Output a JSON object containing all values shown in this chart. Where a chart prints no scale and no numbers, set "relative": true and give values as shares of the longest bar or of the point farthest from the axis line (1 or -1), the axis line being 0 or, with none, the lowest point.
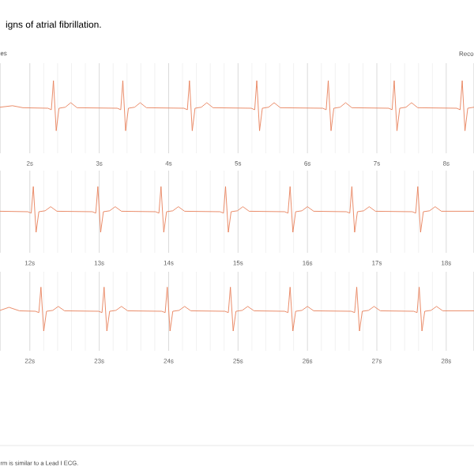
{
  "chart_data": [
    {
      "type": "line",
      "title": "igns of atrial fibrillation.",
      "relative": true,
      "grid": "x",
      "annotations": [
        "es",
        "Reco"
      ],
      "xlim": [
        1.57,
        8.4
      ],
      "xticks": [
        {
          "value": 2,
          "label": "2s"
        },
        {
          "value": 3,
          "label": "3s"
        },
        {
          "value": 4,
          "label": "4s"
        },
        {
          "value": 5,
          "label": "5s"
        },
        {
          "value": 6,
          "label": "6s"
        },
        {
          "value": 7,
          "label": "7s"
        },
        {
          "value": 8,
          "label": "8s"
        }
      ],
      "series": [
        {
          "color": "#e8805a",
          "x": [
            1.57,
            1.75,
            1.9,
            2.26,
            2.31,
            2.34,
            2.38,
            2.42,
            2.51,
            2.59,
            2.68,
            3.26,
            3.31,
            3.34,
            3.38,
            3.42,
            3.51,
            3.59,
            3.68,
            4.22,
            4.27,
            4.3,
            4.34,
            4.38,
            4.47,
            4.55,
            4.64,
            5.19,
            5.24,
            5.27,
            5.31,
            5.35,
            5.44,
            5.52,
            5.61,
            6.22,
            6.27,
            6.3,
            6.34,
            6.38,
            6.47,
            6.55,
            6.64,
            7.17,
            7.22,
            7.25,
            7.29,
            7.33,
            7.42,
            7.5,
            7.59,
            8.15,
            8.2,
            8.23,
            8.27,
            8.31,
            8.4
          ],
          "values": [
            0.47,
            0.5,
            0.46,
            0.45,
            0.42,
            1,
            0,
            0.45,
            0.47,
            0.56,
            0.46,
            0.45,
            0.42,
            1,
            0,
            0.45,
            0.47,
            0.56,
            0.46,
            0.45,
            0.42,
            1,
            0,
            0.45,
            0.47,
            0.56,
            0.46,
            0.45,
            0.42,
            1,
            0,
            0.45,
            0.47,
            0.56,
            0.46,
            0.45,
            0.42,
            1,
            0,
            0.45,
            0.47,
            0.56,
            0.46,
            0.45,
            0.42,
            1,
            0,
            0.45,
            0.47,
            0.56,
            0.46,
            0.45,
            0.42,
            1,
            0,
            0.45,
            0.47
          ]
        }
      ]
    },
    {
      "type": "line",
      "relative": true,
      "grid": "x",
      "xlim": [
        11.57,
        18.4
      ],
      "xticks": [
        {
          "value": 12,
          "label": "12s"
        },
        {
          "value": 13,
          "label": "13s"
        },
        {
          "value": 14,
          "label": "14s"
        },
        {
          "value": 15,
          "label": "15s"
        },
        {
          "value": 16,
          "label": "16s"
        },
        {
          "value": 17,
          "label": "17s"
        },
        {
          "value": 18,
          "label": "18s"
        }
      ],
      "series": [
        {
          "color": "#e8805a",
          "x": [
            11.57,
            11.97,
            12.02,
            12.05,
            12.09,
            12.13,
            12.22,
            12.3,
            12.39,
            12.9,
            12.95,
            12.98,
            13.02,
            13.06,
            13.15,
            13.23,
            13.32,
            13.81,
            13.86,
            13.89,
            13.93,
            13.97,
            14.06,
            14.14,
            14.23,
            14.74,
            14.79,
            14.82,
            14.86,
            14.9,
            14.99,
            15.07,
            15.16,
            15.67,
            15.72,
            15.75,
            15.79,
            15.83,
            15.92,
            16.0,
            16.09,
            16.56,
            16.61,
            16.64,
            16.68,
            16.72,
            16.81,
            16.89,
            16.98,
            17.51,
            17.56,
            17.59,
            17.63,
            17.67,
            17.76,
            17.84,
            17.93,
            18.4
          ],
          "values": [
            0.46,
            0.45,
            0.42,
            1,
            0,
            0.45,
            0.47,
            0.56,
            0.46,
            0.45,
            0.42,
            1,
            0,
            0.45,
            0.47,
            0.56,
            0.46,
            0.45,
            0.42,
            1,
            0,
            0.45,
            0.47,
            0.56,
            0.46,
            0.45,
            0.42,
            1,
            0,
            0.45,
            0.47,
            0.56,
            0.46,
            0.45,
            0.42,
            1,
            0,
            0.45,
            0.47,
            0.56,
            0.46,
            0.45,
            0.42,
            1,
            0,
            0.45,
            0.47,
            0.56,
            0.46,
            0.45,
            0.42,
            1,
            0,
            0.45,
            0.47,
            0.56,
            0.46,
            0.46
          ]
        }
      ]
    },
    {
      "type": "line",
      "relative": true,
      "grid": "x",
      "annotations": [
        "rm is similar to a Lead I ECG."
      ],
      "xlim": [
        21.57,
        28.4
      ],
      "xticks": [
        {
          "value": 22,
          "label": "22s"
        },
        {
          "value": 23,
          "label": "23s"
        },
        {
          "value": 24,
          "label": "24s"
        },
        {
          "value": 25,
          "label": "25s"
        },
        {
          "value": 26,
          "label": "26s"
        },
        {
          "value": 27,
          "label": "27s"
        },
        {
          "value": 28,
          "label": "28s"
        }
      ],
      "series": [
        {
          "color": "#e8805a",
          "x": [
            21.57,
            21.7,
            21.85,
            22.08,
            22.13,
            22.16,
            22.2,
            22.24,
            22.33,
            22.41,
            22.5,
            22.99,
            23.04,
            23.07,
            23.11,
            23.15,
            23.24,
            23.32,
            23.41,
            23.9,
            23.95,
            23.98,
            24.02,
            24.06,
            24.15,
            24.23,
            24.32,
            24.81,
            24.86,
            24.89,
            24.93,
            24.97,
            25.06,
            25.14,
            25.23,
            25.67,
            25.72,
            25.75,
            25.79,
            25.83,
            25.92,
            26.0,
            26.09,
            26.63,
            26.68,
            26.71,
            26.75,
            26.79,
            26.88,
            26.96,
            27.05,
            27.53,
            27.58,
            27.61,
            27.65,
            27.69,
            27.78,
            27.86,
            27.95,
            28.4
          ],
          "values": [
            0.47,
            0.54,
            0.46,
            0.45,
            0.42,
            1,
            0,
            0.45,
            0.47,
            0.56,
            0.46,
            0.45,
            0.42,
            1,
            0,
            0.45,
            0.47,
            0.56,
            0.46,
            0.45,
            0.42,
            1,
            0,
            0.45,
            0.47,
            0.56,
            0.46,
            0.45,
            0.42,
            1,
            0,
            0.45,
            0.47,
            0.56,
            0.46,
            0.45,
            0.42,
            1,
            0,
            0.45,
            0.47,
            0.56,
            0.46,
            0.45,
            0.42,
            1,
            0,
            0.45,
            0.47,
            0.56,
            0.46,
            0.45,
            0.42,
            1,
            0,
            0.45,
            0.47,
            0.56,
            0.46,
            0.46
          ]
        }
      ]
    }
  ]
}
